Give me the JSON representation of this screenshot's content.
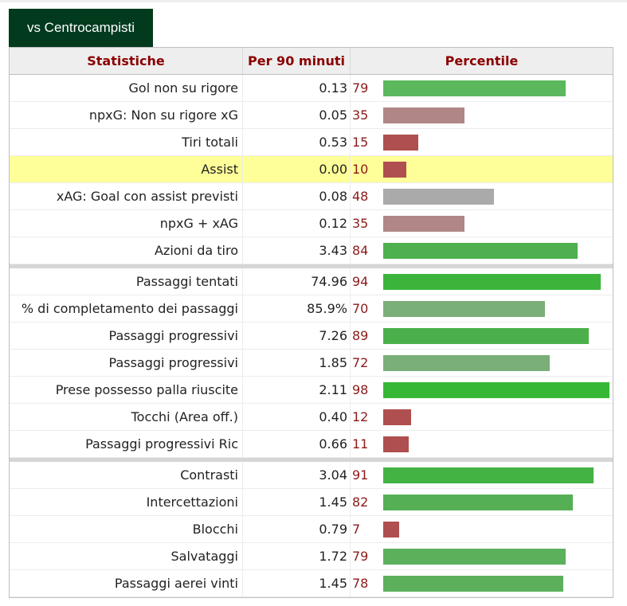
{
  "tab": {
    "label": "vs Centrocampisti"
  },
  "table": {
    "headers": {
      "stat": "Statistiche",
      "per90": "Per 90 minuti",
      "percentile": "Percentile"
    },
    "groups": [
      {
        "rows": [
          {
            "stat": "Gol non su rigore",
            "value": "0.13",
            "percentile": "79",
            "bar_color": "#5cb85c",
            "highlight": false
          },
          {
            "stat": "npxG: Non su rigore xG",
            "value": "0.05",
            "percentile": "35",
            "bar_color": "#b08686",
            "highlight": false
          },
          {
            "stat": "Tiri totali",
            "value": "0.53",
            "percentile": "15",
            "bar_color": "#b04f4f",
            "highlight": false
          },
          {
            "stat": "Assist",
            "value": "0.00",
            "percentile": "10",
            "bar_color": "#b04f4f",
            "highlight": true
          },
          {
            "stat": "xAG: Goal con assist previsti",
            "value": "0.08",
            "percentile": "48",
            "bar_color": "#aaaaaa",
            "highlight": false
          },
          {
            "stat": "npxG + xAG",
            "value": "0.12",
            "percentile": "35",
            "bar_color": "#b08686",
            "highlight": false
          },
          {
            "stat": "Azioni da tiro",
            "value": "3.43",
            "percentile": "84",
            "bar_color": "#4fb04f",
            "highlight": false
          }
        ]
      },
      {
        "rows": [
          {
            "stat": "Passaggi tentati",
            "value": "74.96",
            "percentile": "94",
            "bar_color": "#3cb43c",
            "highlight": false
          },
          {
            "stat": "% di completamento dei passaggi",
            "value": "85.9%",
            "percentile": "70",
            "bar_color": "#7aaf7a",
            "highlight": false
          },
          {
            "stat": "Passaggi progressivi",
            "value": "7.26",
            "percentile": "89",
            "bar_color": "#4bb04b",
            "highlight": false
          },
          {
            "stat": "Passaggi progressivi",
            "value": "1.85",
            "percentile": "72",
            "bar_color": "#7aaf7a",
            "highlight": false
          },
          {
            "stat": "Prese possesso palla riuscite",
            "value": "2.11",
            "percentile": "98",
            "bar_color": "#36b836",
            "highlight": false
          },
          {
            "stat": "Tocchi (Area off.)",
            "value": "0.40",
            "percentile": "12",
            "bar_color": "#b04f4f",
            "highlight": false
          },
          {
            "stat": "Passaggi progressivi Ric",
            "value": "0.66",
            "percentile": "11",
            "bar_color": "#b04f4f",
            "highlight": false
          }
        ]
      },
      {
        "rows": [
          {
            "stat": "Contrasti",
            "value": "3.04",
            "percentile": "91",
            "bar_color": "#43b343",
            "highlight": false
          },
          {
            "stat": "Intercettazioni",
            "value": "1.45",
            "percentile": "82",
            "bar_color": "#55b055",
            "highlight": false
          },
          {
            "stat": "Blocchi",
            "value": "0.79",
            "percentile": "7",
            "bar_color": "#b04f4f",
            "highlight": false
          },
          {
            "stat": "Salvataggi",
            "value": "1.72",
            "percentile": "79",
            "bar_color": "#5cb05c",
            "highlight": false
          },
          {
            "stat": "Passaggi aerei vinti",
            "value": "1.45",
            "percentile": "78",
            "bar_color": "#5cb05c",
            "highlight": false
          }
        ]
      }
    ]
  },
  "colors": {
    "tab_bg": "#023a1e",
    "header_text": "#8b0000",
    "highlight_row": "#ffff99"
  }
}
